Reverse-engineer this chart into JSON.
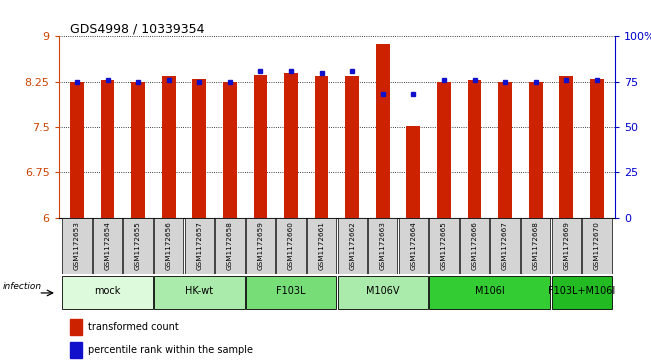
{
  "title": "GDS4998 / 10339354",
  "samples": [
    "GSM1172653",
    "GSM1172654",
    "GSM1172655",
    "GSM1172656",
    "GSM1172657",
    "GSM1172658",
    "GSM1172659",
    "GSM1172660",
    "GSM1172661",
    "GSM1172662",
    "GSM1172663",
    "GSM1172664",
    "GSM1172665",
    "GSM1172666",
    "GSM1172667",
    "GSM1172668",
    "GSM1172669",
    "GSM1172670"
  ],
  "bar_heights": [
    8.25,
    8.27,
    8.25,
    8.34,
    8.3,
    8.25,
    8.36,
    8.4,
    8.35,
    8.35,
    8.88,
    7.52,
    8.25,
    8.27,
    8.25,
    8.25,
    8.35,
    8.3
  ],
  "blue_dots": [
    75,
    76,
    75,
    76,
    75,
    75,
    81,
    81,
    80,
    81,
    68,
    68,
    76,
    76,
    75,
    75,
    76,
    76
  ],
  "bar_color": "#cc2200",
  "dot_color": "#1111cc",
  "ylim_left": [
    6,
    9
  ],
  "ylim_right": [
    0,
    100
  ],
  "yticks_left": [
    6,
    6.75,
    7.5,
    8.25,
    9
  ],
  "ytick_labels_left": [
    "6",
    "6.75",
    "7.5",
    "8.25",
    "9"
  ],
  "yticks_right": [
    0,
    25,
    50,
    75,
    100
  ],
  "ytick_labels_right": [
    "0",
    "25",
    "50",
    "75",
    "100%"
  ],
  "groups": [
    {
      "label": "mock",
      "start": 0,
      "end": 2,
      "color": "#ddfadd"
    },
    {
      "label": "HK-wt",
      "start": 3,
      "end": 5,
      "color": "#aaeaaa"
    },
    {
      "label": "F103L",
      "start": 6,
      "end": 8,
      "color": "#77dd77"
    },
    {
      "label": "M106V",
      "start": 9,
      "end": 11,
      "color": "#aaeaaa"
    },
    {
      "label": "M106I",
      "start": 12,
      "end": 15,
      "color": "#33cc33"
    },
    {
      "label": "F103L+M106I",
      "start": 16,
      "end": 17,
      "color": "#22bb22"
    }
  ],
  "infection_label": "infection",
  "legend_bar_label": "transformed count",
  "legend_dot_label": "percentile rank within the sample",
  "bar_width": 0.45,
  "left_axis_color": "#cc4400",
  "right_axis_color": "#0000cc"
}
